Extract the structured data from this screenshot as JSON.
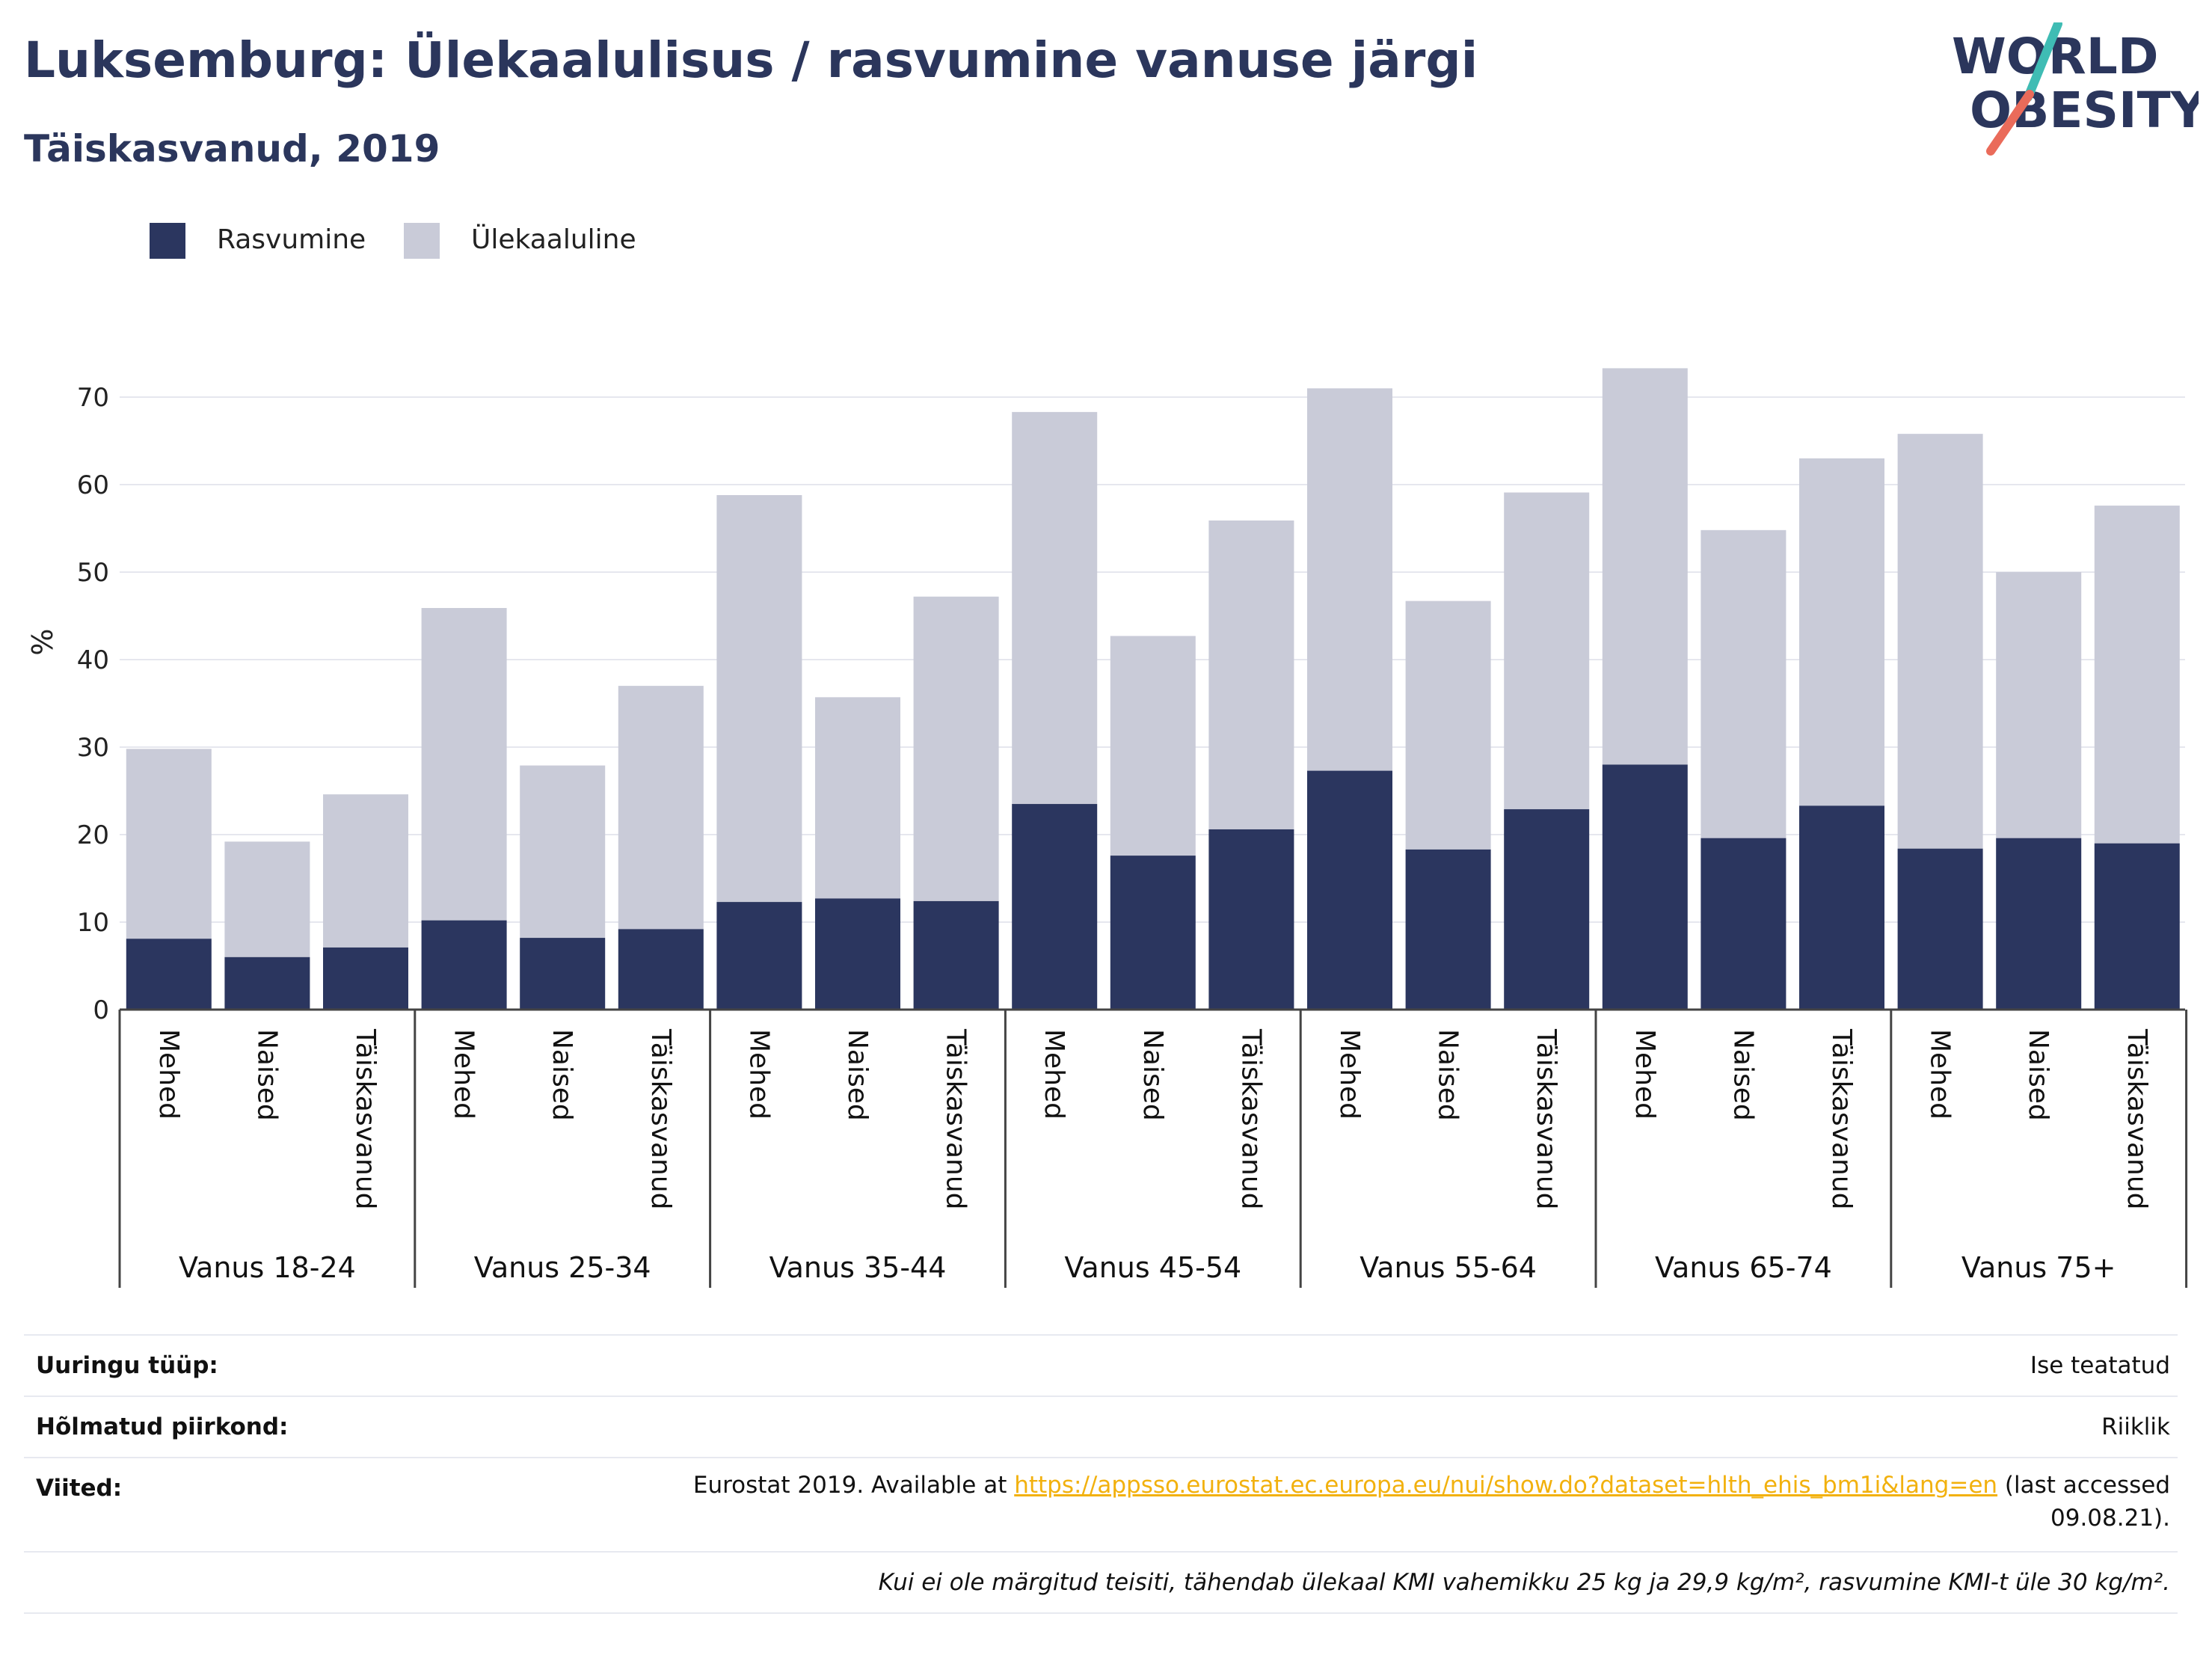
{
  "header": {
    "title": "Luksemburg: Ülekaalulisus / rasvumine vanuse järgi",
    "subtitle": "Täiskasvanud, 2019"
  },
  "logo": {
    "line1": "WORLD",
    "line2": "OBESITY"
  },
  "colors": {
    "obesity": "#2b365f",
    "overweight": "#c9cbd8",
    "title": "#2b365c",
    "link": "#f2b10e",
    "logo_teal": "#3fbcb4",
    "logo_coral": "#ea6b5a"
  },
  "legend": {
    "obesity_label": "Rasvumine",
    "overweight_label": "Ülekaaluline"
  },
  "chart_data": {
    "type": "bar",
    "stacked": true,
    "ylabel": "%",
    "ylim": [
      0,
      75
    ],
    "yticks": [
      0,
      10,
      20,
      30,
      40,
      50,
      60,
      70
    ],
    "grid": true,
    "legend_position": "top-left",
    "categories": [
      {
        "group": "Vanus 18-24",
        "label": "Mehed"
      },
      {
        "group": "Vanus 18-24",
        "label": "Naised"
      },
      {
        "group": "Vanus 18-24",
        "label": "Täiskasvanud"
      },
      {
        "group": "Vanus 25-34",
        "label": "Mehed"
      },
      {
        "group": "Vanus 25-34",
        "label": "Naised"
      },
      {
        "group": "Vanus 25-34",
        "label": "Täiskasvanud"
      },
      {
        "group": "Vanus 35-44",
        "label": "Mehed"
      },
      {
        "group": "Vanus 35-44",
        "label": "Naised"
      },
      {
        "group": "Vanus 35-44",
        "label": "Täiskasvanud"
      },
      {
        "group": "Vanus 45-54",
        "label": "Mehed"
      },
      {
        "group": "Vanus 45-54",
        "label": "Naised"
      },
      {
        "group": "Vanus 45-54",
        "label": "Täiskasvanud"
      },
      {
        "group": "Vanus 55-64",
        "label": "Mehed"
      },
      {
        "group": "Vanus 55-64",
        "label": "Naised"
      },
      {
        "group": "Vanus 55-64",
        "label": "Täiskasvanud"
      },
      {
        "group": "Vanus 65-74",
        "label": "Mehed"
      },
      {
        "group": "Vanus 65-74",
        "label": "Naised"
      },
      {
        "group": "Vanus 65-74",
        "label": "Täiskasvanud"
      },
      {
        "group": "Vanus 75+",
        "label": "Mehed"
      },
      {
        "group": "Vanus 75+",
        "label": "Naised"
      },
      {
        "group": "Vanus 75+",
        "label": "Täiskasvanud"
      }
    ],
    "groups": [
      "Vanus 18-24",
      "Vanus 25-34",
      "Vanus 35-44",
      "Vanus 45-54",
      "Vanus 55-64",
      "Vanus 65-74",
      "Vanus 75+"
    ],
    "series": [
      {
        "name": "Rasvumine",
        "values": [
          8.1,
          6.0,
          7.1,
          10.2,
          8.2,
          9.2,
          12.3,
          12.7,
          12.4,
          23.5,
          17.6,
          20.6,
          27.3,
          18.3,
          22.9,
          28.0,
          19.6,
          23.3,
          18.4,
          19.6,
          19.0
        ]
      },
      {
        "name": "Ülekaaluline",
        "values": [
          21.7,
          13.2,
          17.5,
          35.7,
          19.7,
          27.8,
          46.5,
          23.0,
          34.8,
          44.8,
          25.1,
          35.3,
          43.7,
          28.4,
          36.2,
          45.3,
          35.2,
          39.7,
          47.4,
          30.4,
          38.6
        ]
      }
    ]
  },
  "metadata": {
    "survey_type_label": "Uuringu tüüp:",
    "survey_type_value": "Ise teatatud",
    "region_label": "Hõlmatud piirkond:",
    "region_value": "Riiklik",
    "references_label": "Viited:",
    "references_prefix": "Eurostat 2019. Available at",
    "references_link": "https://appsso.eurostat.ec.europa.eu/nui/show.do?dataset=hlth_ehis_bm1i&lang=en",
    "references_suffix": "(last accessed",
    "references_date": "09.08.21).",
    "footnote": "Kui ei ole märgitud teisiti, tähendab ülekaal KMI vahemikku 25 kg ja 29,9 kg/m², rasvumine KMI-t üle 30 kg/m²."
  }
}
